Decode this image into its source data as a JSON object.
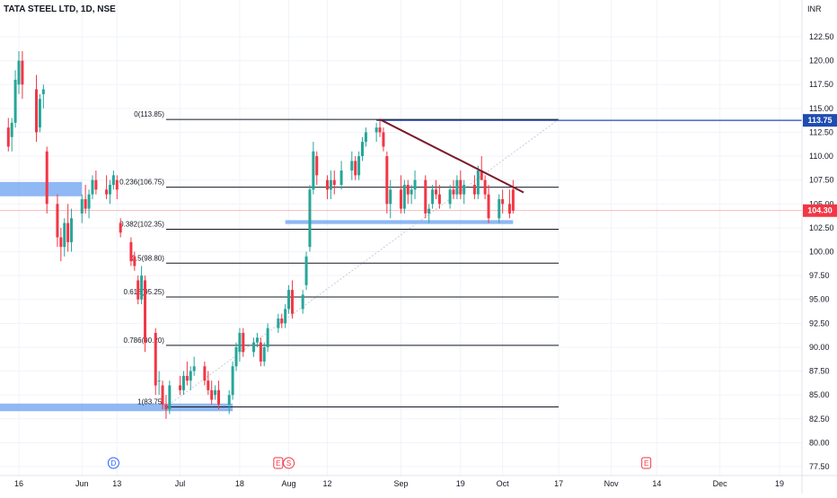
{
  "header": {
    "title": "TATA STEEL LTD, 1D, NSE",
    "currency": "INR"
  },
  "chart_data": {
    "type": "candlestick",
    "title": "TATA STEEL LTD, 1D, NSE",
    "ylabel": "INR",
    "ylim": [
      76.5,
      124.5
    ],
    "y_ticks": [
      "122.50",
      "120.00",
      "117.50",
      "115.00",
      "112.50",
      "110.00",
      "107.50",
      "105.00",
      "102.50",
      "100.00",
      "97.50",
      "95.00",
      "92.50",
      "90.00",
      "87.50",
      "85.00",
      "82.50",
      "80.00",
      "77.50"
    ],
    "x_ticks": [
      {
        "label": "16",
        "date": "2024-05-16"
      },
      {
        "label": "Jun",
        "date": "2024-06-03"
      },
      {
        "label": "13",
        "date": "2024-06-13"
      },
      {
        "label": "Jul",
        "date": "2024-07-01"
      },
      {
        "label": "18",
        "date": "2024-07-18"
      },
      {
        "label": "Aug",
        "date": "2024-08-01"
      },
      {
        "label": "12",
        "date": "2024-08-12"
      },
      {
        "label": "Sep",
        "date": "2024-09-02"
      },
      {
        "label": "19",
        "date": "2024-09-19"
      },
      {
        "label": "Oct",
        "date": "2024-10-01"
      },
      {
        "label": "17",
        "date": "2024-10-17"
      },
      {
        "label": "Nov",
        "date": "2024-11-01"
      },
      {
        "label": "14",
        "date": "2024-11-14"
      },
      {
        "label": "Dec",
        "date": "2024-12-02"
      },
      {
        "label": "19",
        "date": "2024-12-19"
      }
    ],
    "candles": [
      {
        "date": "2024-05-06",
        "o": 115.5,
        "h": 122.0,
        "l": 113.5,
        "c": 119.5
      },
      {
        "date": "2024-05-07",
        "o": 118.5,
        "h": 120.5,
        "l": 115.0,
        "c": 116.0
      },
      {
        "date": "2024-05-08",
        "o": 116.5,
        "h": 118.0,
        "l": 112.5,
        "c": 113.5
      },
      {
        "date": "2024-05-09",
        "o": 115.0,
        "h": 116.0,
        "l": 110.0,
        "c": 111.0
      },
      {
        "date": "2024-05-10",
        "o": 112.0,
        "h": 113.0,
        "l": 109.5,
        "c": 110.5
      },
      {
        "date": "2024-05-13",
        "o": 113.0,
        "h": 114.0,
        "l": 110.5,
        "c": 111.0
      },
      {
        "date": "2024-05-14",
        "o": 112.0,
        "h": 114.0,
        "l": 110.5,
        "c": 113.5
      },
      {
        "date": "2024-05-15",
        "o": 113.5,
        "h": 119.0,
        "l": 113.0,
        "c": 118.0
      },
      {
        "date": "2024-05-16",
        "o": 117.5,
        "h": 121.0,
        "l": 116.5,
        "c": 120.0
      },
      {
        "date": "2024-05-17",
        "o": 120.0,
        "h": 121.0,
        "l": 116.0,
        "c": 117.5
      },
      {
        "date": "2024-05-21",
        "o": 117.0,
        "h": 118.5,
        "l": 111.5,
        "c": 112.5
      },
      {
        "date": "2024-05-22",
        "o": 113.0,
        "h": 116.5,
        "l": 112.5,
        "c": 116.0
      },
      {
        "date": "2024-05-23",
        "o": 116.5,
        "h": 117.5,
        "l": 115.0,
        "c": 117.0
      },
      {
        "date": "2024-05-24",
        "o": 110.5,
        "h": 111.0,
        "l": 104.0,
        "c": 105.0
      },
      {
        "date": "2024-05-27",
        "o": 105.0,
        "h": 106.0,
        "l": 100.5,
        "c": 101.5
      },
      {
        "date": "2024-05-28",
        "o": 101.5,
        "h": 102.5,
        "l": 99.0,
        "c": 100.5
      },
      {
        "date": "2024-05-29",
        "o": 100.5,
        "h": 103.5,
        "l": 99.5,
        "c": 103.0
      },
      {
        "date": "2024-05-30",
        "o": 103.0,
        "h": 105.0,
        "l": 100.0,
        "c": 101.0
      },
      {
        "date": "2024-05-31",
        "o": 101.0,
        "h": 104.5,
        "l": 100.0,
        "c": 103.5
      },
      {
        "date": "2024-06-03",
        "o": 104.0,
        "h": 106.0,
        "l": 103.0,
        "c": 105.5
      },
      {
        "date": "2024-06-04",
        "o": 105.5,
        "h": 107.0,
        "l": 104.0,
        "c": 104.5
      },
      {
        "date": "2024-06-05",
        "o": 104.5,
        "h": 106.5,
        "l": 103.5,
        "c": 106.0
      },
      {
        "date": "2024-06-06",
        "o": 106.0,
        "h": 108.0,
        "l": 105.5,
        "c": 107.5
      },
      {
        "date": "2024-06-07",
        "o": 107.5,
        "h": 108.5,
        "l": 106.0,
        "c": 106.5
      },
      {
        "date": "2024-06-10",
        "o": 106.5,
        "h": 108.0,
        "l": 105.5,
        "c": 106.0
      },
      {
        "date": "2024-06-11",
        "o": 106.0,
        "h": 107.5,
        "l": 105.0,
        "c": 107.0
      },
      {
        "date": "2024-06-12",
        "o": 107.0,
        "h": 108.5,
        "l": 106.5,
        "c": 108.0
      },
      {
        "date": "2024-06-13",
        "o": 107.5,
        "h": 108.0,
        "l": 105.5,
        "c": 106.5
      },
      {
        "date": "2024-06-14",
        "o": 103.0,
        "h": 103.5,
        "l": 101.5,
        "c": 102.0
      },
      {
        "date": "2024-06-17",
        "o": 101.0,
        "h": 101.5,
        "l": 98.5,
        "c": 99.0
      },
      {
        "date": "2024-06-18",
        "o": 99.5,
        "h": 100.0,
        "l": 98.0,
        "c": 98.5
      },
      {
        "date": "2024-06-19",
        "o": 97.0,
        "h": 97.5,
        "l": 94.5,
        "c": 95.0
      },
      {
        "date": "2024-06-20",
        "o": 95.0,
        "h": 98.5,
        "l": 94.5,
        "c": 97.5
      },
      {
        "date": "2024-06-21",
        "o": 97.0,
        "h": 97.5,
        "l": 89.5,
        "c": 90.5
      },
      {
        "date": "2024-06-24",
        "o": 91.5,
        "h": 92.0,
        "l": 85.0,
        "c": 86.0
      },
      {
        "date": "2024-06-25",
        "o": 86.5,
        "h": 87.5,
        "l": 85.0,
        "c": 86.5
      },
      {
        "date": "2024-06-26",
        "o": 86.0,
        "h": 86.5,
        "l": 83.5,
        "c": 84.0
      },
      {
        "date": "2024-06-27",
        "o": 84.0,
        "h": 85.0,
        "l": 82.5,
        "c": 83.5
      },
      {
        "date": "2024-06-28",
        "o": 83.5,
        "h": 86.5,
        "l": 83.0,
        "c": 86.0
      },
      {
        "date": "2024-07-01",
        "o": 86.0,
        "h": 87.0,
        "l": 85.0,
        "c": 85.5
      },
      {
        "date": "2024-07-02",
        "o": 85.5,
        "h": 87.5,
        "l": 85.0,
        "c": 87.0
      },
      {
        "date": "2024-07-03",
        "o": 87.0,
        "h": 88.5,
        "l": 86.0,
        "c": 86.5
      },
      {
        "date": "2024-07-04",
        "o": 86.5,
        "h": 88.0,
        "l": 85.5,
        "c": 87.5
      },
      {
        "date": "2024-07-05",
        "o": 87.5,
        "h": 89.0,
        "l": 87.0,
        "c": 88.0
      },
      {
        "date": "2024-07-08",
        "o": 88.0,
        "h": 88.5,
        "l": 86.0,
        "c": 86.5
      },
      {
        "date": "2024-07-09",
        "o": 86.5,
        "h": 87.5,
        "l": 85.0,
        "c": 85.5
      },
      {
        "date": "2024-07-10",
        "o": 85.5,
        "h": 86.5,
        "l": 84.0,
        "c": 84.5
      },
      {
        "date": "2024-07-11",
        "o": 85.0,
        "h": 86.0,
        "l": 84.5,
        "c": 85.5
      },
      {
        "date": "2024-07-12",
        "o": 85.5,
        "h": 86.5,
        "l": 83.5,
        "c": 84.0
      },
      {
        "date": "2024-07-15",
        "o": 84.0,
        "h": 85.5,
        "l": 83.0,
        "c": 85.0
      },
      {
        "date": "2024-07-16",
        "o": 85.0,
        "h": 88.5,
        "l": 84.5,
        "c": 88.0
      },
      {
        "date": "2024-07-17",
        "o": 88.0,
        "h": 90.5,
        "l": 87.5,
        "c": 90.0
      },
      {
        "date": "2024-07-18",
        "o": 89.5,
        "h": 92.0,
        "l": 88.5,
        "c": 91.5
      },
      {
        "date": "2024-07-19",
        "o": 91.5,
        "h": 92.0,
        "l": 89.0,
        "c": 89.5
      },
      {
        "date": "2024-07-22",
        "o": 89.5,
        "h": 91.0,
        "l": 89.0,
        "c": 90.5
      },
      {
        "date": "2024-07-23",
        "o": 90.5,
        "h": 91.5,
        "l": 90.0,
        "c": 91.0
      },
      {
        "date": "2024-07-24",
        "o": 90.5,
        "h": 91.0,
        "l": 88.0,
        "c": 88.5
      },
      {
        "date": "2024-07-25",
        "o": 88.5,
        "h": 90.5,
        "l": 88.0,
        "c": 90.0
      },
      {
        "date": "2024-07-26",
        "o": 90.0,
        "h": 92.5,
        "l": 89.5,
        "c": 92.0
      },
      {
        "date": "2024-07-29",
        "o": 92.0,
        "h": 93.5,
        "l": 91.5,
        "c": 93.0
      },
      {
        "date": "2024-07-30",
        "o": 93.0,
        "h": 93.5,
        "l": 92.0,
        "c": 92.5
      },
      {
        "date": "2024-07-31",
        "o": 92.5,
        "h": 94.5,
        "l": 92.0,
        "c": 94.0
      },
      {
        "date": "2024-08-01",
        "o": 94.0,
        "h": 96.5,
        "l": 93.5,
        "c": 96.0
      },
      {
        "date": "2024-08-02",
        "o": 96.0,
        "h": 97.0,
        "l": 93.0,
        "c": 93.5
      },
      {
        "date": "2024-08-05",
        "o": 94.0,
        "h": 96.0,
        "l": 93.5,
        "c": 95.5
      },
      {
        "date": "2024-08-06",
        "o": 96.5,
        "h": 100.0,
        "l": 96.0,
        "c": 99.5
      },
      {
        "date": "2024-08-07",
        "o": 100.5,
        "h": 107.0,
        "l": 100.0,
        "c": 106.5
      },
      {
        "date": "2024-08-08",
        "o": 106.5,
        "h": 111.5,
        "l": 106.0,
        "c": 110.5
      },
      {
        "date": "2024-08-09",
        "o": 110.0,
        "h": 110.5,
        "l": 107.0,
        "c": 108.0
      },
      {
        "date": "2024-08-12",
        "o": 107.5,
        "h": 108.0,
        "l": 105.5,
        "c": 106.5
      },
      {
        "date": "2024-08-13",
        "o": 106.5,
        "h": 108.5,
        "l": 105.5,
        "c": 107.5
      },
      {
        "date": "2024-08-14",
        "o": 107.5,
        "h": 108.5,
        "l": 106.0,
        "c": 107.0
      },
      {
        "date": "2024-08-16",
        "o": 107.0,
        "h": 109.5,
        "l": 106.5,
        "c": 108.5
      },
      {
        "date": "2024-08-19",
        "o": 108.5,
        "h": 110.5,
        "l": 107.5,
        "c": 109.5
      },
      {
        "date": "2024-08-20",
        "o": 109.5,
        "h": 110.0,
        "l": 107.5,
        "c": 108.0
      },
      {
        "date": "2024-08-21",
        "o": 108.0,
        "h": 110.5,
        "l": 107.5,
        "c": 110.0
      },
      {
        "date": "2024-08-22",
        "o": 110.0,
        "h": 112.0,
        "l": 109.5,
        "c": 111.5
      },
      {
        "date": "2024-08-23",
        "o": 111.5,
        "h": 113.0,
        "l": 111.0,
        "c": 112.5
      },
      {
        "date": "2024-08-26",
        "o": 112.5,
        "h": 113.5,
        "l": 111.5,
        "c": 113.0
      },
      {
        "date": "2024-08-27",
        "o": 113.0,
        "h": 113.8,
        "l": 112.0,
        "c": 112.5
      },
      {
        "date": "2024-08-28",
        "o": 112.5,
        "h": 113.0,
        "l": 110.5,
        "c": 111.0
      },
      {
        "date": "2024-08-29",
        "o": 110.0,
        "h": 110.5,
        "l": 104.0,
        "c": 105.0
      },
      {
        "date": "2024-08-30",
        "o": 105.0,
        "h": 107.5,
        "l": 103.5,
        "c": 106.5
      },
      {
        "date": "2024-09-02",
        "o": 106.5,
        "h": 108.0,
        "l": 104.0,
        "c": 104.5
      },
      {
        "date": "2024-09-03",
        "o": 104.5,
        "h": 107.5,
        "l": 104.0,
        "c": 107.0
      },
      {
        "date": "2024-09-04",
        "o": 107.0,
        "h": 107.5,
        "l": 105.0,
        "c": 106.0
      },
      {
        "date": "2024-09-05",
        "o": 106.0,
        "h": 107.0,
        "l": 105.0,
        "c": 106.5
      },
      {
        "date": "2024-09-06",
        "o": 106.5,
        "h": 108.5,
        "l": 105.5,
        "c": 107.5
      },
      {
        "date": "2024-09-09",
        "o": 107.5,
        "h": 108.0,
        "l": 103.5,
        "c": 104.0
      },
      {
        "date": "2024-09-10",
        "o": 104.0,
        "h": 105.0,
        "l": 103.0,
        "c": 104.5
      },
      {
        "date": "2024-09-11",
        "o": 105.0,
        "h": 107.0,
        "l": 104.5,
        "c": 106.5
      },
      {
        "date": "2024-09-12",
        "o": 106.5,
        "h": 107.5,
        "l": 105.5,
        "c": 106.0
      },
      {
        "date": "2024-09-13",
        "o": 106.0,
        "h": 107.0,
        "l": 104.5,
        "c": 105.0
      },
      {
        "date": "2024-09-16",
        "o": 105.0,
        "h": 107.0,
        "l": 104.5,
        "c": 106.5
      },
      {
        "date": "2024-09-17",
        "o": 106.5,
        "h": 107.5,
        "l": 105.5,
        "c": 106.0
      },
      {
        "date": "2024-09-18",
        "o": 106.0,
        "h": 108.0,
        "l": 105.5,
        "c": 107.5
      },
      {
        "date": "2024-09-19",
        "o": 107.5,
        "h": 108.5,
        "l": 105.5,
        "c": 106.0
      },
      {
        "date": "2024-09-20",
        "o": 106.0,
        "h": 107.5,
        "l": 105.0,
        "c": 107.0
      },
      {
        "date": "2024-09-23",
        "o": 107.0,
        "h": 108.0,
        "l": 105.5,
        "c": 106.0
      },
      {
        "date": "2024-09-24",
        "o": 106.0,
        "h": 109.0,
        "l": 105.5,
        "c": 108.5
      },
      {
        "date": "2024-09-25",
        "o": 108.5,
        "h": 110.0,
        "l": 107.5,
        "c": 107.5
      },
      {
        "date": "2024-09-26",
        "o": 107.5,
        "h": 108.0,
        "l": 105.5,
        "c": 106.0
      },
      {
        "date": "2024-09-27",
        "o": 106.0,
        "h": 107.0,
        "l": 103.0,
        "c": 103.5
      },
      {
        "date": "2024-09-30",
        "o": 103.5,
        "h": 106.0,
        "l": 103.0,
        "c": 105.5
      },
      {
        "date": "2024-10-01",
        "o": 105.5,
        "h": 106.5,
        "l": 104.0,
        "c": 105.0
      },
      {
        "date": "2024-10-03",
        "o": 105.0,
        "h": 106.5,
        "l": 103.5,
        "c": 104.0
      },
      {
        "date": "2024-10-04",
        "o": 106.5,
        "h": 107.5,
        "l": 104.0,
        "c": 104.3
      }
    ],
    "fib_levels": [
      {
        "label": "0(113.85)",
        "value": 113.85
      },
      {
        "label": "0.236(106.75)",
        "value": 106.75
      },
      {
        "label": "0.382(102.35)",
        "value": 102.35
      },
      {
        "label": "0.5(98.80)",
        "value": 98.8
      },
      {
        "label": "0.618(95.25)",
        "value": 95.25
      },
      {
        "label": "0.786(90.20)",
        "value": 90.2
      },
      {
        "label": "1(83.75)",
        "value": 83.75
      }
    ],
    "fib_range": {
      "start_date": "2024-06-27",
      "end_date": "2024-10-17"
    },
    "fib_trend_line": {
      "from": {
        "date": "2024-06-27",
        "value": 83.75
      },
      "to": {
        "date": "2024-10-17",
        "value": 113.85
      }
    },
    "horizontal_ray": {
      "date": "2024-08-26",
      "value": 113.75,
      "color": "#1f4cb2"
    },
    "trend_line": {
      "from": {
        "date": "2024-08-27",
        "value": 113.85
      },
      "to": {
        "date": "2024-10-07",
        "value": 106.2
      },
      "color": "#7a1a2a"
    },
    "zones": [
      {
        "from": "2024-04-29",
        "to": "2024-06-03",
        "low": 105.8,
        "high": 107.3
      },
      {
        "from": "2024-04-29",
        "to": "2024-07-16",
        "low": 83.3,
        "high": 84.1
      },
      {
        "from": "2024-07-31",
        "to": "2024-10-04",
        "low": 102.9,
        "high": 103.3
      }
    ],
    "last_price": {
      "label": "104.30",
      "value": 104.3,
      "color": "#f23645"
    },
    "ray_price": {
      "label": "113.75",
      "value": 113.75,
      "color": "#1f4cb2"
    },
    "events": [
      {
        "label": "D",
        "date": "2024-06-12",
        "color": "#2962ff"
      },
      {
        "label": "E",
        "date": "2024-07-29",
        "color": "#f23645"
      },
      {
        "label": "S",
        "date": "2024-08-01",
        "color": "#f23645"
      },
      {
        "label": "E",
        "date": "2024-11-11",
        "color": "#f23645"
      }
    ],
    "colors": {
      "up": "#26a69a",
      "down": "#f23645",
      "grid": "#f0f3fa",
      "fib": "#131722",
      "zone": "#6aa0f0"
    }
  }
}
